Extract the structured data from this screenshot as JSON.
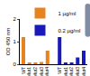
{
  "chart_data": {
    "type": "bar",
    "y_label": "OD 450 nm",
    "categories": [
      "WT",
      "Mut1",
      "Mut2",
      "Mut3",
      "Mut4",
      null,
      "WT",
      "Mut1",
      "Mut2",
      "Mut3",
      "Mut4"
    ],
    "series": [
      {
        "name": "1 µg/ml",
        "color": "#e8821e",
        "values": [
          1.2,
          0.08,
          0.08,
          0.1,
          0.6,
          null,
          null,
          null,
          null,
          null,
          null
        ]
      },
      {
        "name": "0.2 µg/ml",
        "color": "#1a1ab8",
        "values": [
          null,
          null,
          null,
          null,
          null,
          null,
          1.2,
          0.08,
          0.08,
          0.3,
          0.6
        ]
      }
    ],
    "ylim": [
      0,
      2
    ],
    "yticks": [
      0,
      1,
      2
    ],
    "legend": "top",
    "grid": false
  }
}
